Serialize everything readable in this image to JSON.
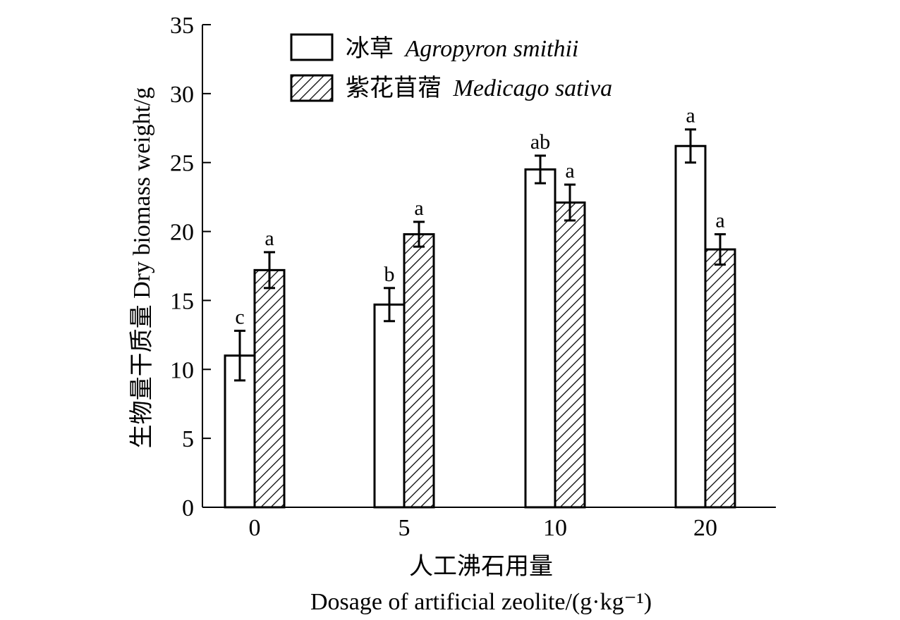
{
  "chart_data": {
    "type": "bar",
    "categories": [
      "0",
      "5",
      "10",
      "20"
    ],
    "series": [
      {
        "name": "冰草 Agropyron smithii",
        "name_cn": "冰草",
        "name_latin": "Agropyron smithii",
        "values": [
          11.0,
          14.7,
          24.5,
          26.2
        ],
        "errors": [
          1.8,
          1.2,
          1.0,
          1.2
        ],
        "labels": [
          "c",
          "b",
          "ab",
          "a"
        ],
        "fill": "white"
      },
      {
        "name": "紫花苜蓿 Medicago sativa",
        "name_cn": "紫花苜蓿",
        "name_latin": "Medicago sativa",
        "values": [
          17.2,
          19.8,
          22.1,
          18.7
        ],
        "errors": [
          1.3,
          0.9,
          1.3,
          1.1
        ],
        "labels": [
          "a",
          "a",
          "a",
          "a"
        ],
        "fill": "hatched"
      }
    ],
    "ylabel": "生物量干质量 Dry biomass weight/g",
    "xlabel_cn": "人工沸石用量",
    "xlabel_en": "Dosage of artificial zeolite/(g·kg⁻¹)",
    "ylim": [
      0,
      35
    ],
    "yticks": [
      0,
      5,
      10,
      15,
      20,
      25,
      30,
      35
    ],
    "grid": false,
    "legend": "top-left"
  }
}
